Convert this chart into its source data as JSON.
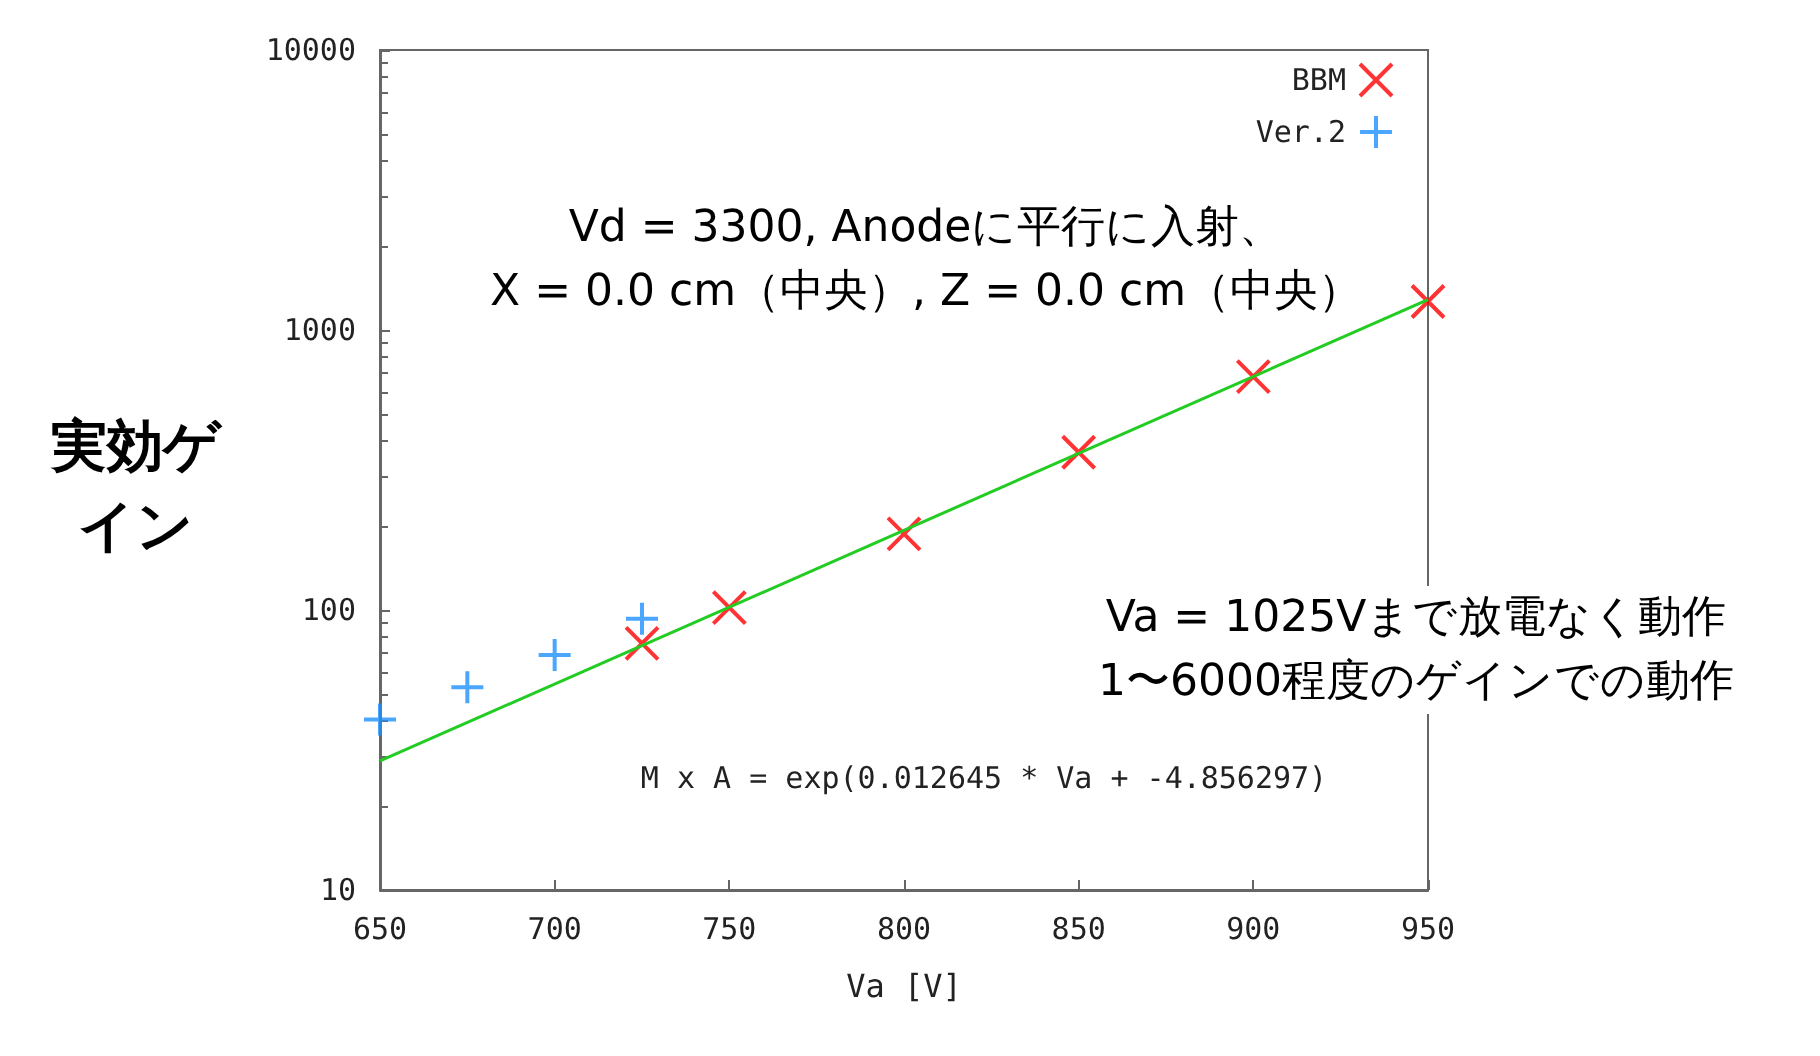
{
  "chart_data": {
    "type": "scatter",
    "xlabel": "Va [V]",
    "ylabel": "実効ゲイン",
    "xlim": [
      650,
      950
    ],
    "xticks": [
      650,
      700,
      750,
      800,
      850,
      900,
      950
    ],
    "ylim": [
      10,
      10000
    ],
    "yticks": [
      10,
      100,
      1000,
      10000
    ],
    "log": "y",
    "grid": false,
    "legend": "top right",
    "series": [
      {
        "name": "BBM",
        "color": "#ff0000",
        "marker": "cross",
        "x": [
          725,
          750,
          800,
          850,
          900,
          950
        ],
        "values": [
          76,
          102,
          187,
          366,
          682,
          1264
        ]
      },
      {
        "name": "Ver.2",
        "color": "#1e90ff",
        "marker": "plus",
        "x": [
          650,
          675,
          700,
          725
        ],
        "values": [
          40.6,
          53,
          69,
          93
        ]
      },
      {
        "type": "line",
        "color": "#22cc22",
        "marker": "none",
        "x": [
          650,
          950
        ],
        "values": [
          28.9,
          1284
        ]
      }
    ],
    "annotations": [
      "Vd = 3300, Anodeに平行に入射、\nX = 0.0 cm（中央）, Z = 0.0 cm（中央）",
      "Va = 1025Vまで放電なく動作\n1〜6000程度のゲインでの動作",
      "M x A = exp(0.012645 * Va + -4.856297)"
    ]
  }
}
